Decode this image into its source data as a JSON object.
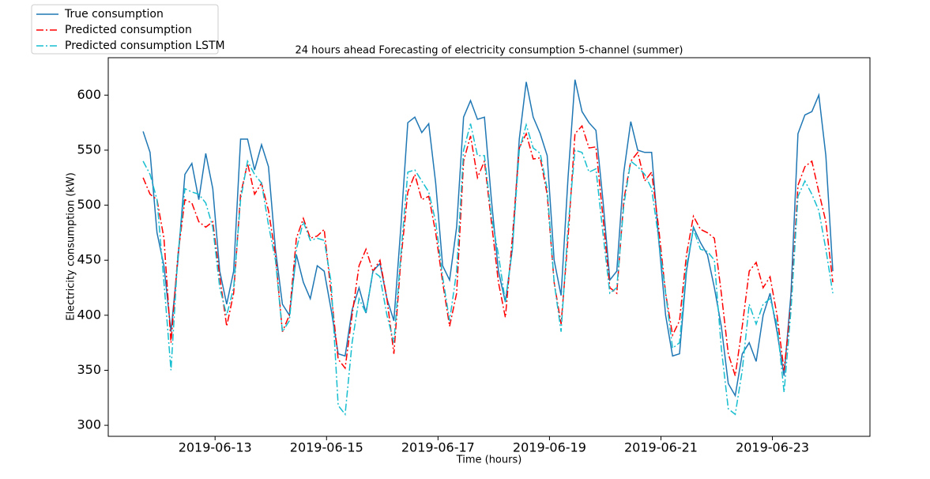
{
  "chart_data": {
    "type": "line",
    "title": "24 hours ahead Forecasting of electricity consumption 5-channel (summer)",
    "xlabel": "Time (hours)",
    "ylabel": "Electricity consumption (kW)",
    "legend": "upper left",
    "xlim": [
      "2019-06-11 02:00",
      "2019-06-24 18:00"
    ],
    "xticks": [
      "2019-06-13",
      "2019-06-15",
      "2019-06-17",
      "2019-06-19",
      "2019-06-21",
      "2019-06-23"
    ],
    "ylim": [
      290,
      634
    ],
    "yticks": [
      300,
      350,
      400,
      450,
      500,
      550,
      600
    ],
    "x": [
      "2019-06-11 17:00",
      "2019-06-11 20:00",
      "2019-06-11 23:00",
      "2019-06-12 02:00",
      "2019-06-12 05:00",
      "2019-06-12 08:00",
      "2019-06-12 11:00",
      "2019-06-12 14:00",
      "2019-06-12 17:00",
      "2019-06-12 20:00",
      "2019-06-12 23:00",
      "2019-06-13 02:00",
      "2019-06-13 05:00",
      "2019-06-13 08:00",
      "2019-06-13 11:00",
      "2019-06-13 14:00",
      "2019-06-13 17:00",
      "2019-06-13 20:00",
      "2019-06-13 23:00",
      "2019-06-14 02:00",
      "2019-06-14 05:00",
      "2019-06-14 08:00",
      "2019-06-14 11:00",
      "2019-06-14 14:00",
      "2019-06-14 17:00",
      "2019-06-14 20:00",
      "2019-06-14 23:00",
      "2019-06-15 02:00",
      "2019-06-15 05:00",
      "2019-06-15 08:00",
      "2019-06-15 11:00",
      "2019-06-15 14:00",
      "2019-06-15 17:00",
      "2019-06-15 20:00",
      "2019-06-15 23:00",
      "2019-06-16 02:00",
      "2019-06-16 05:00",
      "2019-06-16 08:00",
      "2019-06-16 11:00",
      "2019-06-16 14:00",
      "2019-06-16 17:00",
      "2019-06-16 20:00",
      "2019-06-16 23:00",
      "2019-06-17 02:00",
      "2019-06-17 05:00",
      "2019-06-17 08:00",
      "2019-06-17 11:00",
      "2019-06-17 14:00",
      "2019-06-17 17:00",
      "2019-06-17 20:00",
      "2019-06-17 23:00",
      "2019-06-18 02:00",
      "2019-06-18 05:00",
      "2019-06-18 08:00",
      "2019-06-18 11:00",
      "2019-06-18 14:00",
      "2019-06-18 17:00",
      "2019-06-18 20:00",
      "2019-06-18 23:00",
      "2019-06-19 02:00",
      "2019-06-19 05:00",
      "2019-06-19 08:00",
      "2019-06-19 11:00",
      "2019-06-19 14:00",
      "2019-06-19 17:00",
      "2019-06-19 20:00",
      "2019-06-19 23:00",
      "2019-06-20 02:00",
      "2019-06-20 05:00",
      "2019-06-20 08:00",
      "2019-06-20 11:00",
      "2019-06-20 14:00",
      "2019-06-20 17:00",
      "2019-06-20 20:00",
      "2019-06-20 23:00",
      "2019-06-21 02:00",
      "2019-06-21 05:00",
      "2019-06-21 08:00",
      "2019-06-21 11:00",
      "2019-06-21 14:00",
      "2019-06-21 17:00",
      "2019-06-21 20:00",
      "2019-06-21 23:00",
      "2019-06-22 02:00",
      "2019-06-22 05:00",
      "2019-06-22 08:00",
      "2019-06-22 11:00",
      "2019-06-22 14:00",
      "2019-06-22 17:00",
      "2019-06-22 20:00",
      "2019-06-22 23:00",
      "2019-06-23 02:00",
      "2019-06-23 05:00",
      "2019-06-23 08:00",
      "2019-06-23 11:00",
      "2019-06-23 14:00",
      "2019-06-23 17:00",
      "2019-06-23 20:00",
      "2019-06-23 23:00",
      "2019-06-24 02:00"
    ],
    "series": [
      {
        "name": "True consumption",
        "color": "#1f77b4",
        "linestyle": "solid",
        "values": [
          567,
          548,
          475,
          445,
          385,
          450,
          528,
          538,
          505,
          547,
          515,
          440,
          410,
          440,
          560,
          560,
          532,
          555,
          535,
          460,
          410,
          400,
          455,
          430,
          415,
          445,
          440,
          405,
          365,
          363,
          405,
          425,
          402,
          440,
          447,
          415,
          395,
          480,
          575,
          580,
          566,
          574,
          520,
          445,
          432,
          480,
          580,
          595,
          578,
          580,
          505,
          440,
          412,
          460,
          560,
          612,
          580,
          565,
          545,
          450,
          418,
          525,
          614,
          585,
          575,
          568,
          505,
          432,
          440,
          530,
          576,
          550,
          548,
          548,
          470,
          400,
          363,
          365,
          440,
          480,
          466,
          455,
          425,
          390,
          338,
          327,
          365,
          375,
          358,
          400,
          420,
          385,
          345,
          420,
          565,
          582,
          585,
          600,
          545,
          440
        ]
      },
      {
        "name": "Predicted consumption",
        "color": "#ff0000",
        "linestyle": "dashdot",
        "values": [
          525,
          510,
          505,
          470,
          375,
          455,
          505,
          502,
          485,
          480,
          485,
          435,
          390,
          420,
          510,
          538,
          510,
          520,
          495,
          455,
          385,
          400,
          470,
          488,
          470,
          472,
          478,
          420,
          360,
          352,
          400,
          445,
          460,
          440,
          450,
          415,
          365,
          450,
          512,
          528,
          505,
          508,
          475,
          430,
          390,
          420,
          540,
          563,
          525,
          540,
          485,
          430,
          398,
          470,
          552,
          565,
          542,
          543,
          510,
          430,
          392,
          470,
          565,
          572,
          552,
          553,
          490,
          425,
          420,
          505,
          540,
          548,
          522,
          530,
          480,
          420,
          382,
          395,
          455,
          490,
          478,
          475,
          470,
          420,
          365,
          345,
          390,
          440,
          448,
          425,
          435,
          400,
          350,
          410,
          518,
          535,
          540,
          512,
          485,
          430
        ]
      },
      {
        "name": "Predicted consumption LSTM",
        "color": "#17becf",
        "linestyle": "dashdot",
        "values": [
          540,
          528,
          505,
          430,
          350,
          455,
          515,
          512,
          510,
          502,
          480,
          425,
          400,
          425,
          505,
          540,
          528,
          520,
          482,
          450,
          385,
          395,
          460,
          485,
          468,
          470,
          468,
          430,
          318,
          310,
          375,
          415,
          402,
          440,
          435,
          400,
          375,
          455,
          530,
          532,
          522,
          512,
          485,
          435,
          395,
          440,
          550,
          574,
          545,
          545,
          490,
          455,
          412,
          460,
          550,
          573,
          552,
          547,
          515,
          430,
          385,
          480,
          550,
          548,
          530,
          533,
          475,
          420,
          425,
          500,
          540,
          535,
          528,
          515,
          470,
          420,
          370,
          375,
          445,
          478,
          460,
          458,
          450,
          370,
          315,
          310,
          350,
          410,
          392,
          410,
          415,
          392,
          330,
          405,
          508,
          522,
          510,
          495,
          460,
          420
        ]
      }
    ]
  }
}
